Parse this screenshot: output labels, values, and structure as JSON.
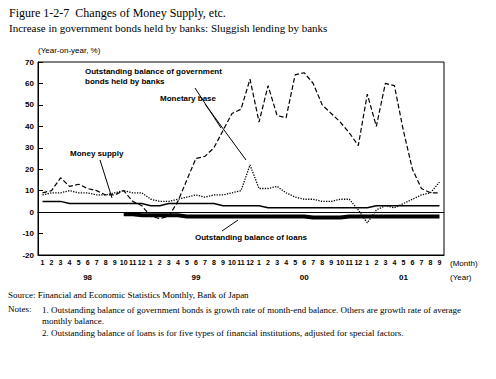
{
  "chart_data": {
    "type": "line",
    "title": "Figure 1-2-7  Changes of Money Supply, etc.",
    "subtitle": "Increase in government bonds held by banks: Sluggish lending by banks",
    "y_label": "(Year-on-year, %)",
    "x_label": "(Month)",
    "x2_label": "(Year)",
    "categories": [
      "1",
      "2",
      "3",
      "4",
      "5",
      "6",
      "7",
      "8",
      "9",
      "10",
      "11",
      "12",
      "1",
      "2",
      "3",
      "4",
      "5",
      "6",
      "7",
      "8",
      "9",
      "10",
      "11",
      "12",
      "1",
      "2",
      "3",
      "4",
      "5",
      "6",
      "7",
      "8",
      "9",
      "10",
      "11",
      "12",
      "1",
      "2",
      "3",
      "4",
      "5",
      "6",
      "7",
      "8",
      "9"
    ],
    "year_categories": [
      null,
      null,
      null,
      null,
      null,
      "98",
      null,
      null,
      null,
      null,
      null,
      null,
      null,
      null,
      null,
      null,
      null,
      "99",
      null,
      null,
      null,
      null,
      null,
      null,
      null,
      null,
      null,
      null,
      null,
      "00",
      null,
      null,
      null,
      null,
      null,
      null,
      null,
      null,
      null,
      null,
      "01",
      null,
      null,
      null,
      null
    ],
    "series": [
      {
        "name": "Outstanding balance of government\nbonds held by banks",
        "color": "#000000",
        "line_style": "dashed",
        "values": [
          9,
          10,
          16,
          12,
          13,
          11,
          10,
          8,
          8,
          10,
          5,
          3,
          -2,
          -3,
          -2,
          5,
          15,
          25,
          26,
          30,
          38,
          46,
          48,
          62,
          42,
          59,
          45,
          44,
          64,
          65,
          60,
          50,
          46,
          42,
          37,
          31,
          55,
          40,
          60,
          59,
          38,
          20,
          11,
          9,
          9
        ]
      },
      {
        "name": "Monetary base",
        "color": "#000000",
        "line_style": "dotted",
        "values": [
          8,
          9,
          9,
          10,
          9,
          9,
          8,
          8,
          9,
          10,
          9,
          9,
          6,
          5,
          5,
          6,
          7,
          8,
          7,
          8,
          8,
          9,
          10,
          22,
          11,
          11,
          12,
          9,
          7,
          6,
          6,
          5,
          5,
          6,
          6,
          1,
          -5,
          1,
          3,
          2,
          4,
          6,
          8,
          9,
          14
        ]
      },
      {
        "name": "Money supply",
        "color": "#000000",
        "line_style": "solid",
        "values": [
          5,
          5,
          5,
          4,
          4,
          4,
          4,
          4,
          4,
          4,
          4,
          4,
          3,
          3,
          4,
          4,
          4,
          4,
          4,
          4,
          3,
          3,
          3,
          3,
          3,
          2,
          2,
          2,
          2,
          2,
          2,
          2,
          2,
          2,
          2,
          2,
          2,
          3,
          3,
          3,
          3,
          3,
          3,
          3,
          3
        ]
      },
      {
        "name": "Outstanding balance of loans",
        "color": "#000000",
        "line_style": "thick",
        "values": [
          null,
          null,
          null,
          null,
          null,
          null,
          null,
          null,
          null,
          -1,
          -1,
          -1.5,
          -1.5,
          -1.5,
          -1.5,
          -1.5,
          -2,
          -2,
          -2,
          -2,
          -2,
          -2,
          -2,
          -2,
          -2,
          -2,
          -2,
          -2,
          -2,
          -2,
          -2.5,
          -2.5,
          -2.5,
          -2.5,
          -2,
          -2,
          -2,
          -2,
          -2,
          -2,
          -2,
          -2,
          -2,
          -2,
          -2
        ]
      }
    ],
    "ylim": [
      -20,
      70
    ],
    "yticks": [
      -20,
      -10,
      0,
      10,
      20,
      30,
      40,
      50,
      60,
      70
    ],
    "grid": false,
    "source": "Source: Financial and Economic Statistics Monthly, Bank of Japan",
    "notes_label": "Notes:",
    "notes": [
      "1. Outstanding balance of government bonds is growth rate of month-end balance. Others are growth rate of average monthly balance.",
      "2. Outstanding balance of loans is for five types of financial institutions, adjusted for special factors."
    ]
  }
}
